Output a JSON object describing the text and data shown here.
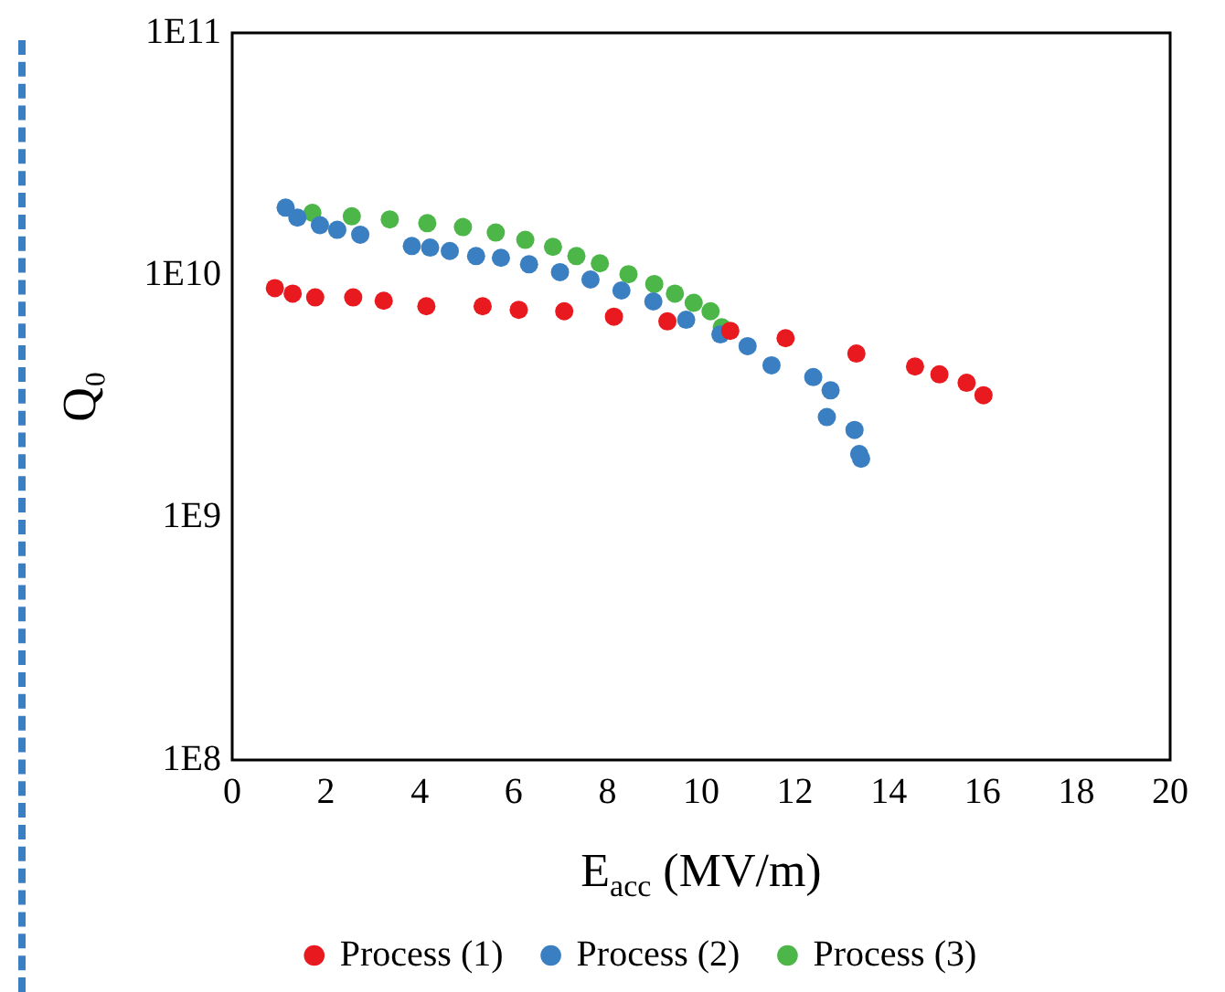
{
  "chart_data": {
    "type": "scatter",
    "xlabel": "E$_{acc}$ (MV/m)",
    "ylabel": "Q₀",
    "log": "y",
    "legend": "bottom",
    "marker": "circle",
    "xlim": [
      0,
      20
    ],
    "xticks": [
      0,
      2,
      4,
      6,
      8,
      10,
      12,
      14,
      16,
      18,
      20
    ],
    "ylim": [
      100000000,
      100000000000
    ],
    "yticks": [
      {
        "value": 100000000,
        "label": "1E8"
      },
      {
        "value": 1000000000,
        "label": "1E9"
      },
      {
        "value": 10000000000,
        "label": "1E10"
      },
      {
        "value": 100000000000,
        "label": "1E11"
      }
    ],
    "series": [
      {
        "name": "Process (1)",
        "color": "#e8191f",
        "x": [
          0.91,
          1.29,
          1.77,
          2.58,
          3.23,
          4.14,
          5.34,
          6.11,
          7.08,
          8.14,
          9.28,
          10.62,
          11.8,
          13.31,
          14.56,
          15.08,
          15.66,
          16.02
        ],
        "values": [
          8850000000,
          8400000000,
          8100000000,
          8100000000,
          7850000000,
          7450000000,
          7450000000,
          7200000000,
          7100000000,
          6750000000,
          6450000000,
          5900000000,
          5500000000,
          4750000000,
          4200000000,
          3900000000,
          3600000000,
          3200000000
        ]
      },
      {
        "name": "Process (2)",
        "color": "#3a7fc1",
        "x": [
          1.14,
          1.39,
          1.87,
          2.24,
          2.73,
          3.83,
          4.22,
          4.64,
          5.2,
          5.73,
          6.33,
          6.99,
          7.64,
          8.3,
          8.98,
          9.68,
          10.41,
          10.99,
          11.5,
          12.39,
          12.76,
          12.68,
          13.27,
          13.37,
          13.41
        ],
        "values": [
          19000000000,
          17300000000,
          16100000000,
          15400000000,
          14700000000,
          13200000000,
          13000000000,
          12600000000,
          12000000000,
          11800000000,
          11100000000,
          10300000000,
          9600000000,
          8650000000,
          7800000000,
          6550000000,
          5700000000,
          5100000000,
          4250000000,
          3800000000,
          3350000000,
          2600000000,
          2300000000,
          1830000000,
          1750000000
        ]
      },
      {
        "name": "Process (3)",
        "color": "#4cb748",
        "x": [
          1.71,
          2.55,
          3.36,
          4.16,
          4.92,
          5.62,
          6.25,
          6.84,
          7.34,
          7.84,
          8.45,
          9.0,
          9.44,
          9.84,
          10.2,
          10.44
        ],
        "values": [
          18100000000,
          17500000000,
          17000000000,
          16400000000,
          15800000000,
          15000000000,
          14000000000,
          13100000000,
          12000000000,
          11200000000,
          10100000000,
          9200000000,
          8400000000,
          7700000000,
          7100000000,
          6100000000
        ]
      }
    ]
  }
}
